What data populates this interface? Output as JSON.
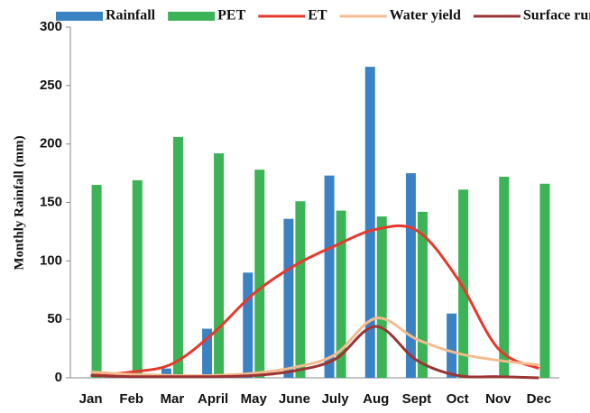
{
  "chart_data": {
    "type": "bar",
    "y_label": "Monthly Rainfall (mm)",
    "categories": [
      "Jan",
      "Feb",
      "Mar",
      "April",
      "May",
      "June",
      "July",
      "Aug",
      "Sept",
      "Oct",
      "Nov",
      "Dec"
    ],
    "series": [
      {
        "name": "Rainfall",
        "type": "bar",
        "color": "#3a82c4",
        "values": [
          0,
          0,
          8,
          42,
          90,
          136,
          173,
          266,
          175,
          55,
          0,
          0
        ]
      },
      {
        "name": "PET",
        "type": "bar",
        "color": "#3cb356",
        "values": [
          165,
          169,
          206,
          192,
          178,
          151,
          143,
          138,
          142,
          161,
          172,
          166
        ]
      },
      {
        "name": "ET",
        "type": "line",
        "color": "#e8382b",
        "values": [
          2,
          5,
          12,
          38,
          72,
          96,
          113,
          127,
          126,
          85,
          25,
          8
        ]
      },
      {
        "name": "Water yield",
        "type": "line",
        "color": "#f5bb8e",
        "values": [
          5,
          3,
          2,
          2,
          4,
          9,
          20,
          51,
          33,
          21,
          15,
          11
        ]
      },
      {
        "name": "Surface runoff",
        "type": "line",
        "color": "#9b3535",
        "values": [
          2,
          1,
          1,
          1,
          2,
          6,
          16,
          44,
          15,
          2,
          1,
          0
        ]
      }
    ],
    "ylim": [
      0,
      300
    ],
    "yticks": [
      0,
      50,
      100,
      150,
      200,
      250,
      300
    ]
  }
}
